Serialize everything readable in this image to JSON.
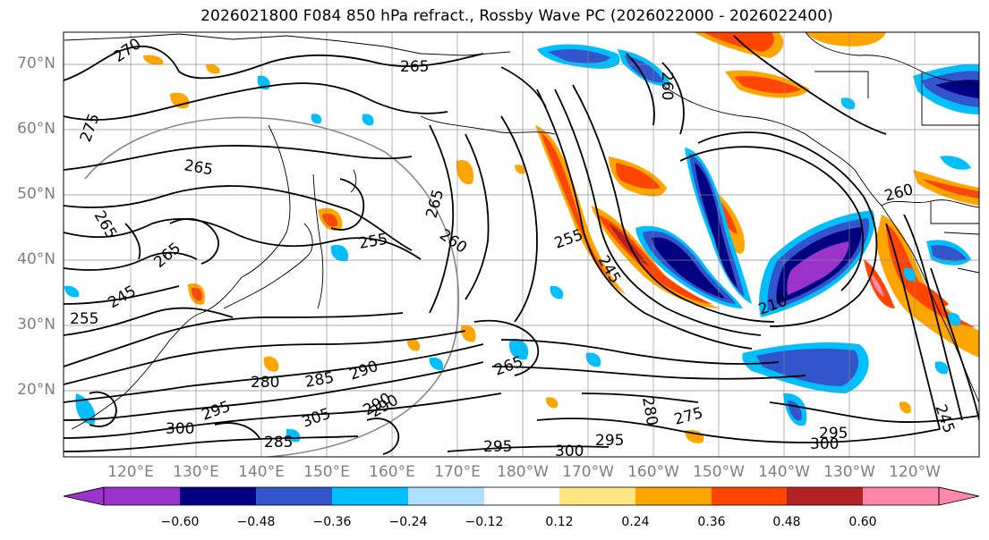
{
  "title": "2026021800 F084 850 hPa refract., Rossby Wave PC (2026022000 - 2026022400)",
  "latitude_labels": [
    "70°N",
    "60°N",
    "50°N",
    "40°N",
    "30°N",
    "20°N"
  ],
  "longitude_labels": [
    "120°E",
    "130°E",
    "140°E",
    "150°E",
    "160°E",
    "170°E",
    "180°W",
    "170°W",
    "160°W",
    "150°W",
    "140°W",
    "130°W",
    "120°W"
  ],
  "contour_labels": [
    "270",
    "275",
    "265",
    "265",
    "265",
    "255",
    "260",
    "265",
    "255",
    "245",
    "260",
    "265",
    "245",
    "255",
    "280",
    "285",
    "290",
    "290",
    "295",
    "300",
    "305",
    "295",
    "300",
    "295",
    "280",
    "275",
    "295",
    "300",
    "210",
    "260",
    "245",
    "290",
    "265",
    "285"
  ],
  "colorbar": {
    "ticks": [
      "−0.60",
      "−0.48",
      "−0.36",
      "−0.24",
      "−0.12",
      "0.12",
      "0.24",
      "0.36",
      "0.48",
      "0.60"
    ],
    "colors": [
      "#9933cc",
      "#000080",
      "#3355cc",
      "#00bfff",
      "#b0e0ff",
      "#ffffff",
      "#ffe680",
      "#ffa500",
      "#ff4500",
      "#b22222",
      "#ff88aa"
    ],
    "under_color": "#9933cc",
    "over_color": "#ff88aa"
  },
  "colors": {
    "contour": "#000000",
    "grid": "#888888",
    "coast": "#000000",
    "tick_label": "#7f7f7f"
  }
}
